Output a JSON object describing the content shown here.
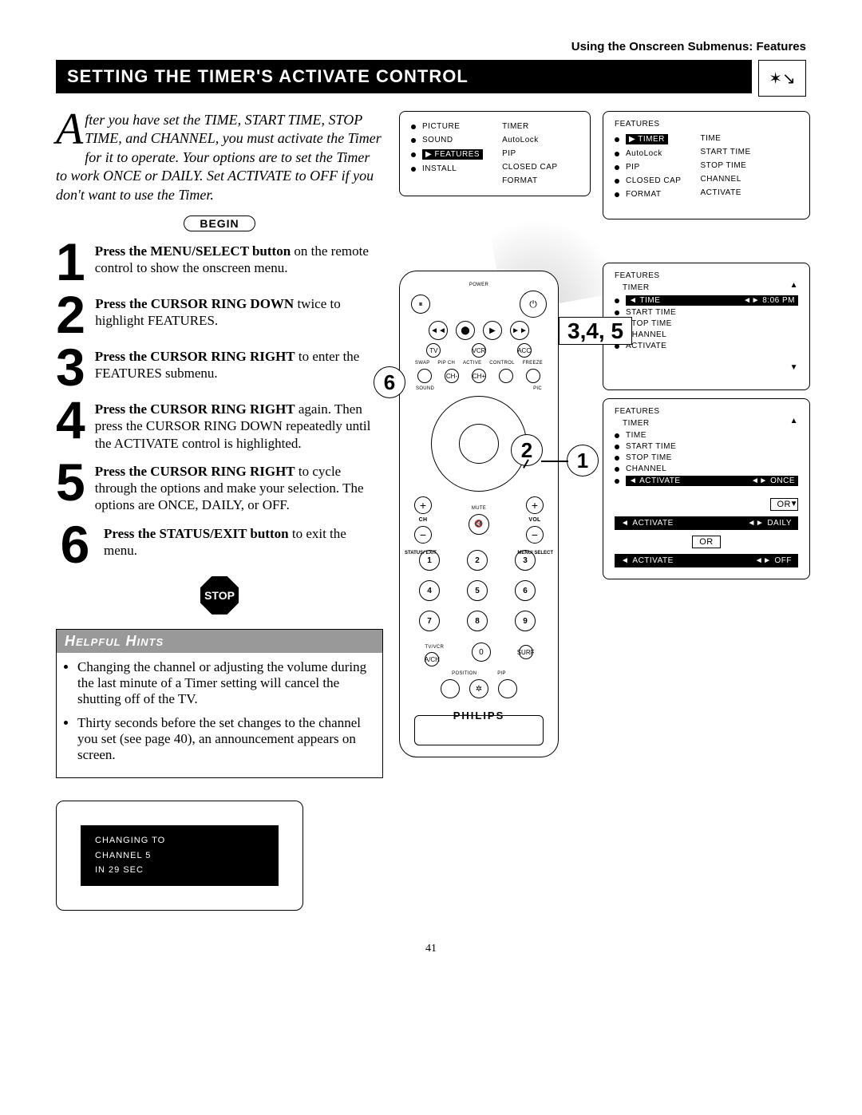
{
  "header": "Using the Onscreen Submenus: Features",
  "title": "SETTING THE TIMER'S ACTIVATE CONTROL",
  "top_icon": "✶↘",
  "intro": {
    "dropcap": "A",
    "text": "fter you have set the TIME, START TIME, STOP TIME, and CHANNEL, you must activate the Timer for it to operate. Your options are to set the Timer to work ONCE or DAILY. Set ACTIVATE to OFF if you don't want to use the Timer."
  },
  "begin_label": "BEGIN",
  "steps": [
    {
      "n": "1",
      "bold": "Press the MENU/SELECT button",
      "rest": " on the remote control to show the onscreen menu."
    },
    {
      "n": "2",
      "bold": "Press the CURSOR RING DOWN",
      "rest": " twice to highlight FEATURES."
    },
    {
      "n": "3",
      "bold": "Press the CURSOR RING RIGHT",
      "rest": " to enter the FEATURES submenu."
    },
    {
      "n": "4",
      "bold": "Press the CURSOR RING RIGHT",
      "rest": " again. Then press the CURSOR RING DOWN repeatedly until the ACTIVATE control is highlighted."
    },
    {
      "n": "5",
      "bold": "Press the CURSOR RING RIGHT",
      "rest": " to cycle through the options and make your selection. The options are ONCE, DAILY, or OFF."
    },
    {
      "n": "6",
      "bold": "Press the STATUS/EXIT button",
      "rest": " to exit the menu."
    }
  ],
  "stop_label": "STOP",
  "hints": {
    "title": "Helpful Hints",
    "items": [
      "Changing the channel or adjusting the volume during the last minute of a Timer setting will cancel the shutting off of the TV.",
      "Thirty seconds before the set changes to the channel you set (see page 40), an announcement appears on screen."
    ]
  },
  "announce": {
    "l1": "CHANGING  TO",
    "l2": "CHANNEL     5",
    "l3": "IN    29  SEC"
  },
  "menu1": {
    "left": [
      "PICTURE",
      "SOUND",
      "FEATURES",
      "INSTALL"
    ],
    "left_selected_index": 2,
    "right": [
      "TIMER",
      "AutoLock",
      "PIP",
      "CLOSED CAP",
      "FORMAT"
    ]
  },
  "menu2": {
    "head": "FEATURES",
    "left": [
      "TIMER",
      "AutoLock",
      "PIP",
      "CLOSED CAP",
      "FORMAT",
      ""
    ],
    "left_selected_index": 0,
    "right": [
      "TIME",
      "START TIME",
      "STOP TIME",
      "CHANNEL",
      "ACTIVATE"
    ]
  },
  "menu3": {
    "head": "FEATURES",
    "sub": "TIMER",
    "items": [
      "TIME",
      "START TIME",
      "STOP TIME",
      "CHANNEL",
      "ACTIVATE"
    ],
    "selected_index": 0,
    "time_value": "8:06  PM"
  },
  "menu4": {
    "head": "FEATURES",
    "sub": "TIMER",
    "items": [
      "TIME",
      "START TIME",
      "STOP TIME",
      "CHANNEL",
      "ACTIVATE",
      ""
    ],
    "selected_index": 4,
    "value": "ONCE",
    "or": "OR",
    "alt1_label": "ACTIVATE",
    "alt1_value": "DAILY",
    "alt2_label": "ACTIVATE",
    "alt2_value": "OFF"
  },
  "remote": {
    "power_label": "POWER",
    "row_labels": [
      "TV",
      "VCR",
      "ACC"
    ],
    "swap": "SWAP",
    "pipch": "PIP CH",
    "active": "ACTIVE",
    "control": "CONTROL",
    "freeze": "FREEZE",
    "chm": "CH-",
    "chp": "CH+",
    "sound": "SOUND",
    "pic": "PIC",
    "status_exit": "STATUS/\nEXIT",
    "menu_select": "MENU/\nSELECT",
    "mute": "MUTE",
    "ch": "CH",
    "vol": "VOL",
    "nums": [
      "1",
      "2",
      "3",
      "4",
      "5",
      "6",
      "7",
      "8",
      "9"
    ],
    "tvvcr": "TV/VCR",
    "ach": "A/CH",
    "zero": "0",
    "surf": "SURF",
    "position": "POSITION",
    "pip": "PIP",
    "brand": "PHILIPS"
  },
  "callouts": {
    "c1": "1",
    "c2": "2",
    "r345": "3,4,\n5",
    "c6": "6"
  },
  "page_number": "41"
}
